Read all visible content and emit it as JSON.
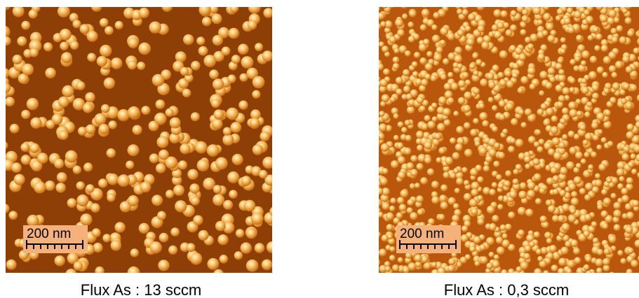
{
  "panels": [
    {
      "scale_bar": "200 nm",
      "caption": "Flux As : 13 sccm"
    },
    {
      "scale_bar": "200 nm",
      "caption": "Flux As : 0,3 sccm"
    }
  ]
}
